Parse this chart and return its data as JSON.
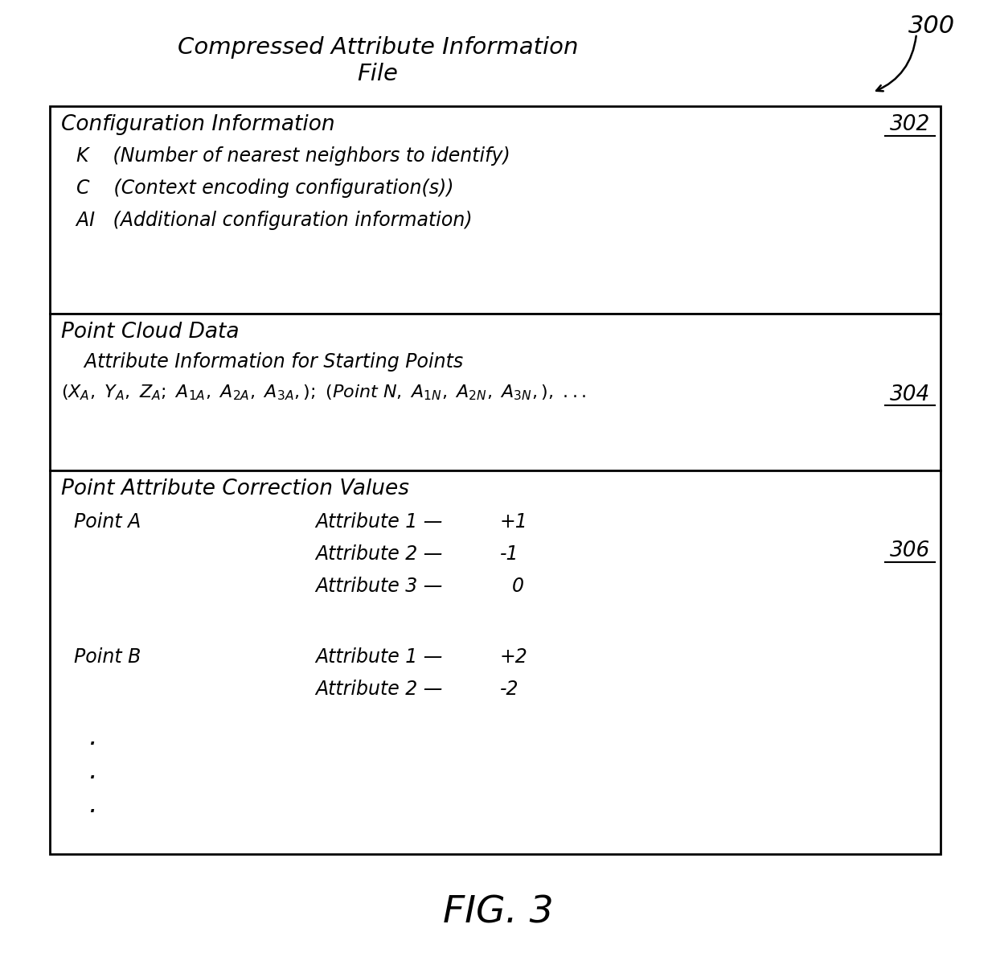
{
  "title_line1": "Compressed Attribute Information",
  "title_line2": "File",
  "figure_label": "300",
  "fig3_label": "FIG. 3",
  "box1_label": "302",
  "box2_label": "304",
  "box3_label": "306",
  "box1_title": "Configuration Information",
  "box1_lines": [
    "  K    (Number of nearest neighbors to identify)",
    "  C    (Context encoding configuration(s))",
    "  AI   (Additional configuration information)"
  ],
  "box2_title": "Point Cloud Data",
  "box2_sub": "  Attribute Information for Starting Points",
  "box3_title": "Point Attribute Correction Values",
  "background_color": "#ffffff",
  "box_line_color": "#000000",
  "text_color": "#000000"
}
